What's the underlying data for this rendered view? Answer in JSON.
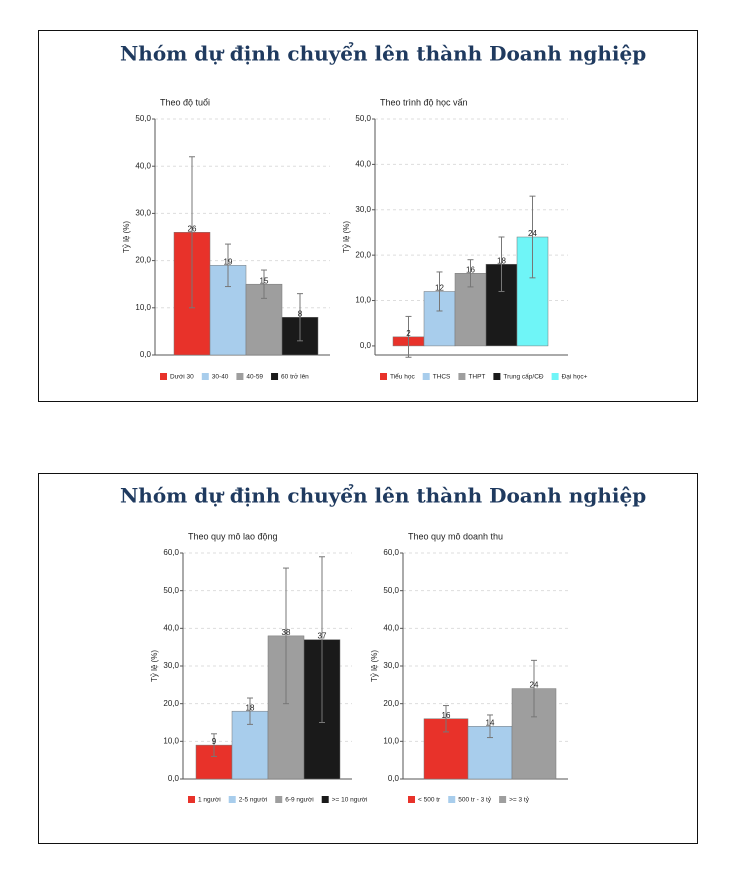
{
  "panels": [
    {
      "title": "Nhóm dự định chuyển lên thành Doanh nghiệp"
    },
    {
      "title": "Nhóm dự định chuyển lên thành Doanh nghiệp"
    }
  ],
  "chart_data": [
    {
      "type": "bar",
      "title": "Theo độ tuổi",
      "y_label": "Tỷ lệ (%)",
      "categories": [
        "Dưới 30",
        "30-40",
        "40-59",
        "60 trở lên"
      ],
      "values": [
        26,
        19,
        15,
        8
      ],
      "errors": [
        16,
        4.5,
        3,
        5
      ],
      "colors": [
        "#e8322a",
        "#a8cdec",
        "#9e9e9e",
        "#1a1a1a"
      ],
      "ylim": [
        0,
        50
      ],
      "yticks": [
        {
          "value": 0,
          "label": "0,0"
        },
        {
          "value": 10,
          "label": "10,0"
        },
        {
          "value": 20,
          "label": "20,0"
        },
        {
          "value": 30,
          "label": "30,0"
        },
        {
          "value": 40,
          "label": "40,0"
        },
        {
          "value": 50,
          "label": "50,0"
        }
      ],
      "grid": true
    },
    {
      "type": "bar",
      "title": "Theo trình độ học vấn",
      "y_label": "Tỷ lệ (%)",
      "categories": [
        "Tiểu học",
        "THCS",
        "THPT",
        "Trung cấp/CĐ",
        "Đại học+"
      ],
      "values": [
        2,
        12,
        16,
        18,
        24
      ],
      "errors": [
        4.5,
        4.3,
        3,
        6,
        9
      ],
      "colors": [
        "#e8322a",
        "#a8cdec",
        "#9e9e9e",
        "#1a1a1a",
        "#6ff5f7"
      ],
      "ylim": [
        -2,
        50
      ],
      "yticks": [
        {
          "value": 0,
          "label": "0,0"
        },
        {
          "value": 10,
          "label": "10,0"
        },
        {
          "value": 20,
          "label": "20,0"
        },
        {
          "value": 30,
          "label": "30,0"
        },
        {
          "value": 40,
          "label": "40,0"
        },
        {
          "value": 50,
          "label": "50,0"
        }
      ],
      "grid": true
    },
    {
      "type": "bar",
      "title": "Theo quy mô lao động",
      "y_label": "Tỷ lệ (%)",
      "categories": [
        "1 người",
        "2-5 người",
        "6-9 người",
        ">= 10 người"
      ],
      "values": [
        9,
        18,
        38,
        37
      ],
      "errors": [
        3,
        3.5,
        18,
        22
      ],
      "colors": [
        "#e8322a",
        "#a8cdec",
        "#9e9e9e",
        "#1a1a1a"
      ],
      "ylim": [
        0,
        60
      ],
      "yticks": [
        {
          "value": 0,
          "label": "0,0"
        },
        {
          "value": 10,
          "label": "10,0"
        },
        {
          "value": 20,
          "label": "20,0"
        },
        {
          "value": 30,
          "label": "30,0"
        },
        {
          "value": 40,
          "label": "40,0"
        },
        {
          "value": 50,
          "label": "50,0"
        },
        {
          "value": 60,
          "label": "60,0"
        }
      ],
      "grid": true
    },
    {
      "type": "bar",
      "title": "Theo quy mô doanh thu",
      "y_label": "Tỷ lệ (%)",
      "categories": [
        "< 500 tr",
        "500 tr - 3 tỷ",
        ">= 3 tỷ"
      ],
      "values": [
        16,
        14,
        24
      ],
      "errors": [
        3.5,
        3,
        7.5
      ],
      "colors": [
        "#e8322a",
        "#a8cdec",
        "#9e9e9e"
      ],
      "ylim": [
        0,
        60
      ],
      "yticks": [
        {
          "value": 0,
          "label": "0,0"
        },
        {
          "value": 10,
          "label": "10,0"
        },
        {
          "value": 20,
          "label": "20,0"
        },
        {
          "value": 30,
          "label": "30,0"
        },
        {
          "value": 40,
          "label": "40,0"
        },
        {
          "value": 50,
          "label": "50,0"
        },
        {
          "value": 60,
          "label": "60,0"
        }
      ],
      "grid": true
    }
  ]
}
